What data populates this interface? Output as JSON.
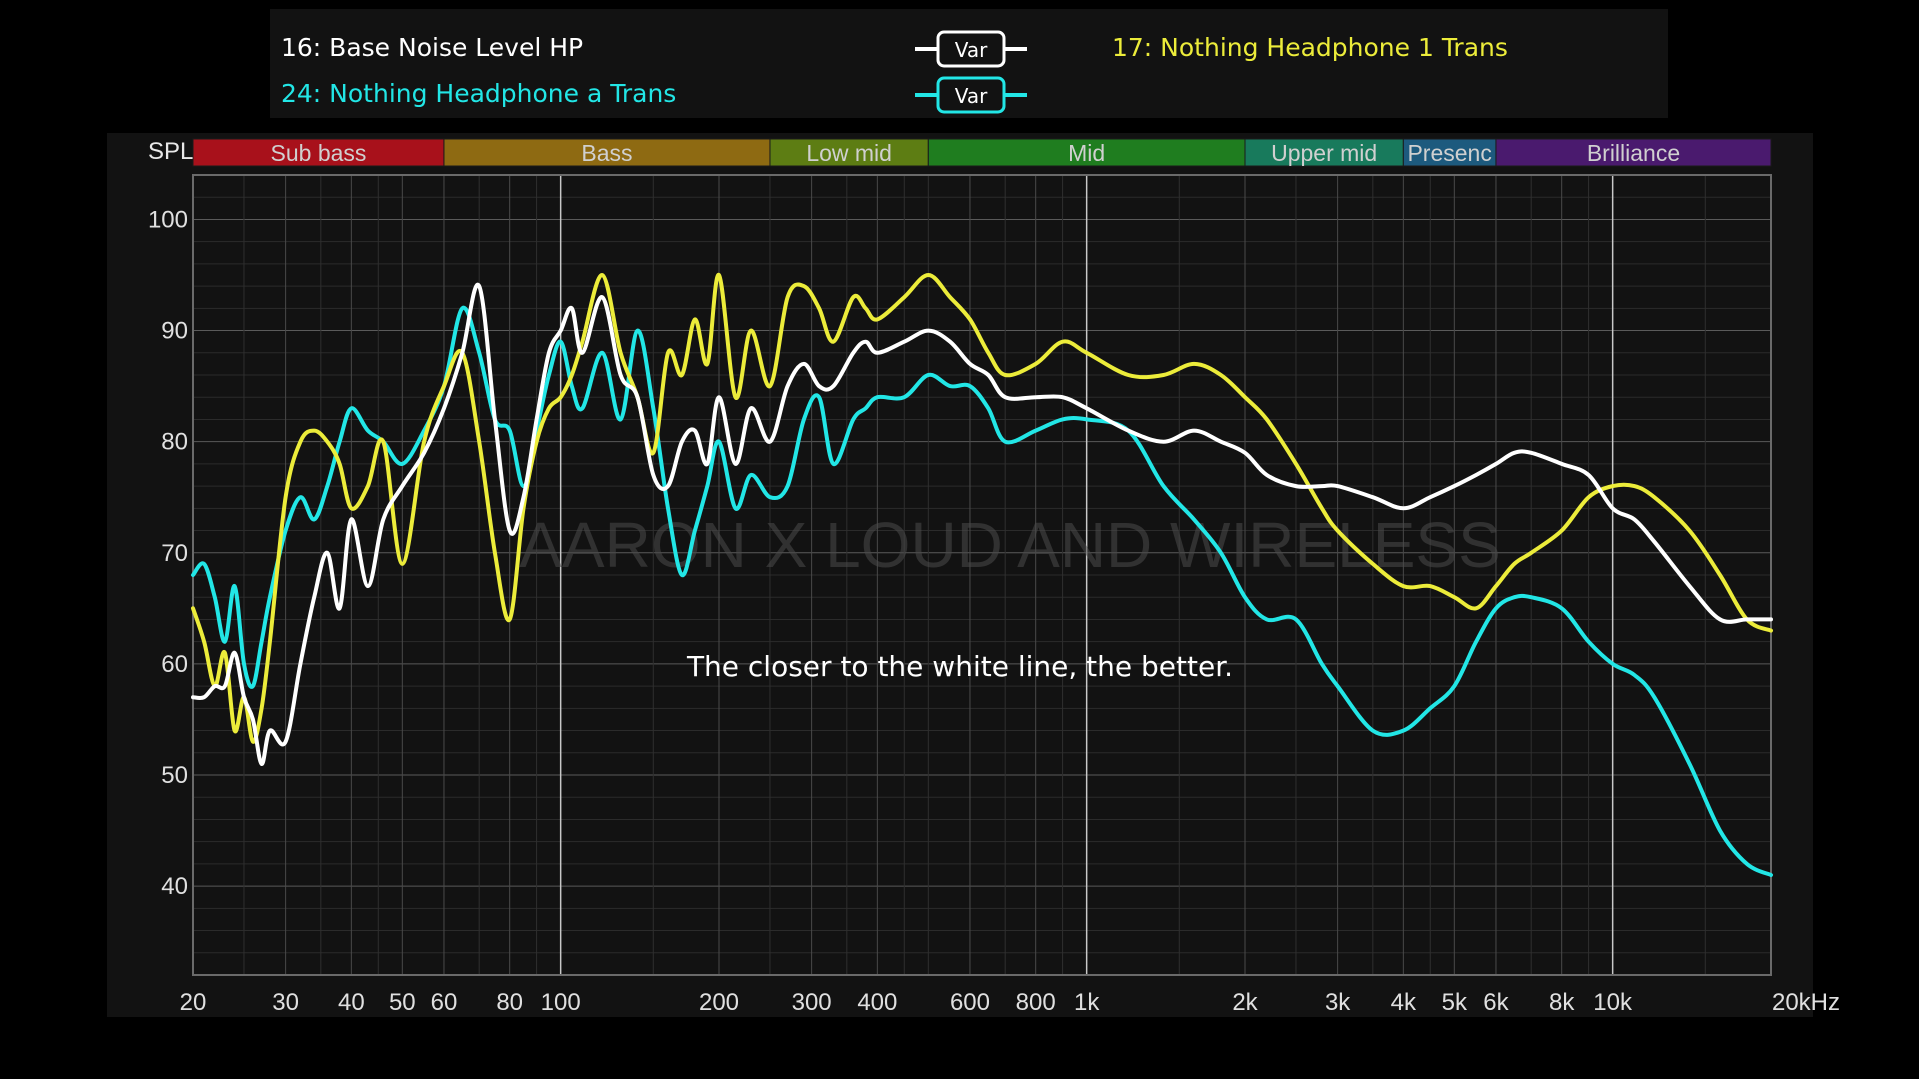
{
  "legend": {
    "entries": [
      {
        "label": "16: Base Noise Level HP",
        "color": "#ffffff",
        "badge": "Var"
      },
      {
        "label": "24: Nothing Headphone a Trans",
        "color": "#22e6e6",
        "badge": "Var"
      },
      {
        "label": "17: Nothing Headphone 1 Trans",
        "color": "#ecec3a"
      }
    ]
  },
  "watermark": "AARON X LOUD AND WIRELESS",
  "note": "The closer to the white line, the better.",
  "chart_data": {
    "type": "line",
    "ylabel": "SPL",
    "x_scale": "log",
    "xlim": [
      20,
      20000
    ],
    "ylim": [
      32,
      104
    ],
    "grid": true,
    "yticks": [
      40,
      50,
      60,
      70,
      80,
      90,
      100
    ],
    "xticks": [
      {
        "value": 20,
        "label": "20"
      },
      {
        "value": 30,
        "label": "30"
      },
      {
        "value": 40,
        "label": "40"
      },
      {
        "value": 50,
        "label": "50"
      },
      {
        "value": 60,
        "label": "60"
      },
      {
        "value": 80,
        "label": "80"
      },
      {
        "value": 100,
        "label": "100"
      },
      {
        "value": 200,
        "label": "200"
      },
      {
        "value": 300,
        "label": "300"
      },
      {
        "value": 400,
        "label": "400"
      },
      {
        "value": 600,
        "label": "600"
      },
      {
        "value": 800,
        "label": "800"
      },
      {
        "value": 1000,
        "label": "1k"
      },
      {
        "value": 2000,
        "label": "2k"
      },
      {
        "value": 3000,
        "label": "3k"
      },
      {
        "value": 4000,
        "label": "4k"
      },
      {
        "value": 5000,
        "label": "5k"
      },
      {
        "value": 6000,
        "label": "6k"
      },
      {
        "value": 8000,
        "label": "8k"
      },
      {
        "value": 10000,
        "label": "10k"
      },
      {
        "value": 20000,
        "label": "20kHz"
      }
    ],
    "bands": [
      {
        "label": "Sub bass",
        "from": 20,
        "to": 60,
        "color": "#a8111b"
      },
      {
        "label": "Bass",
        "from": 60,
        "to": 250,
        "color": "#8e6a12"
      },
      {
        "label": "Low mid",
        "from": 250,
        "to": 500,
        "color": "#5d7d13"
      },
      {
        "label": "Mid",
        "from": 500,
        "to": 2000,
        "color": "#1f7d1f"
      },
      {
        "label": "Upper mid",
        "from": 2000,
        "to": 4000,
        "color": "#187a5c"
      },
      {
        "label": "Presenc",
        "from": 4000,
        "to": 6000,
        "color": "#1d5a7e"
      },
      {
        "label": "Brilliance",
        "from": 6000,
        "to": 20000,
        "color": "#4a1a6e"
      }
    ],
    "series": [
      {
        "name": "24: Nothing Headphone a Trans",
        "color": "#22e6e6",
        "x": [
          20,
          21,
          22,
          23,
          24,
          25,
          26,
          27,
          28,
          30,
          32,
          34,
          36,
          38,
          40,
          43,
          46,
          50,
          55,
          60,
          65,
          70,
          75,
          80,
          85,
          90,
          95,
          100,
          105,
          110,
          120,
          130,
          140,
          150,
          160,
          170,
          180,
          190,
          200,
          215,
          230,
          250,
          270,
          290,
          310,
          330,
          360,
          380,
          400,
          450,
          500,
          550,
          600,
          650,
          700,
          800,
          900,
          1000,
          1200,
          1400,
          1600,
          1800,
          2000,
          2200,
          2500,
          2800,
          3000,
          3500,
          4000,
          4500,
          5000,
          5500,
          6000,
          6500,
          7000,
          8000,
          9000,
          10000,
          11000,
          12000,
          14000,
          16000,
          18000,
          20000
        ],
        "y": [
          68,
          69,
          66,
          62,
          67,
          60,
          58,
          62,
          66,
          72,
          75,
          73,
          76,
          80,
          83,
          81,
          80,
          78,
          81,
          85,
          92,
          88,
          82,
          81,
          76,
          81,
          86,
          89,
          85,
          83,
          88,
          82,
          90,
          83,
          74,
          68,
          72,
          76,
          80,
          74,
          77,
          75,
          76,
          82,
          84,
          78,
          82,
          83,
          84,
          84,
          86,
          85,
          85,
          83,
          80,
          81,
          82,
          82,
          81,
          76,
          73,
          70,
          66,
          64,
          64,
          60,
          58,
          54,
          54,
          56,
          58,
          62,
          65,
          66,
          66,
          65,
          62,
          60,
          59,
          57,
          51,
          45,
          42,
          41
        ]
      },
      {
        "name": "17: Nothing Headphone 1 Trans",
        "color": "#ecec3a",
        "x": [
          20,
          21,
          22,
          23,
          24,
          25,
          26,
          27,
          28,
          30,
          32,
          34,
          36,
          38,
          40,
          43,
          46,
          50,
          55,
          60,
          65,
          70,
          75,
          80,
          85,
          90,
          95,
          100,
          105,
          110,
          120,
          130,
          140,
          150,
          160,
          170,
          180,
          190,
          200,
          215,
          230,
          250,
          270,
          290,
          310,
          330,
          360,
          380,
          400,
          450,
          500,
          550,
          600,
          650,
          700,
          800,
          900,
          1000,
          1200,
          1400,
          1600,
          1800,
          2000,
          2200,
          2500,
          2800,
          3000,
          3500,
          4000,
          4500,
          5000,
          5500,
          6000,
          6500,
          7000,
          8000,
          9000,
          10000,
          11000,
          12000,
          14000,
          16000,
          18000,
          20000
        ],
        "y": [
          65,
          62,
          58,
          61,
          54,
          57,
          53,
          56,
          62,
          75,
          80,
          81,
          80,
          78,
          74,
          76,
          80,
          69,
          80,
          85,
          88,
          80,
          70,
          64,
          74,
          80,
          83,
          84,
          86,
          89,
          95,
          88,
          84,
          79,
          88,
          86,
          91,
          87,
          95,
          84,
          90,
          85,
          93,
          94,
          92,
          89,
          93,
          92,
          91,
          93,
          95,
          93,
          91,
          88,
          86,
          87,
          89,
          88,
          86,
          86,
          87,
          86,
          84,
          82,
          78,
          74,
          72,
          69,
          67,
          67,
          66,
          65,
          67,
          69,
          70,
          72,
          75,
          76,
          76,
          75,
          72,
          68,
          64,
          63
        ]
      },
      {
        "name": "16: Base Noise Level HP",
        "color": "#ffffff",
        "x": [
          20,
          21,
          22,
          23,
          24,
          25,
          26,
          27,
          28,
          30,
          32,
          34,
          36,
          38,
          40,
          43,
          46,
          50,
          55,
          60,
          65,
          70,
          75,
          80,
          85,
          90,
          95,
          100,
          105,
          110,
          120,
          130,
          140,
          150,
          160,
          170,
          180,
          190,
          200,
          215,
          230,
          250,
          270,
          290,
          310,
          330,
          360,
          380,
          400,
          450,
          500,
          550,
          600,
          650,
          700,
          800,
          900,
          1000,
          1200,
          1400,
          1600,
          1800,
          2000,
          2200,
          2500,
          2800,
          3000,
          3500,
          4000,
          4500,
          5000,
          5500,
          6000,
          6500,
          7000,
          8000,
          9000,
          10000,
          11000,
          12000,
          14000,
          16000,
          18000,
          20000
        ],
        "y": [
          57,
          57,
          58,
          58,
          61,
          57,
          55,
          51,
          54,
          53,
          60,
          66,
          70,
          65,
          73,
          67,
          73,
          76,
          79,
          83,
          88,
          94,
          82,
          72,
          75,
          82,
          88,
          90,
          92,
          88,
          93,
          86,
          84,
          77,
          76,
          80,
          81,
          78,
          84,
          78,
          83,
          80,
          85,
          87,
          85,
          85,
          88,
          89,
          88,
          89,
          90,
          89,
          87,
          86,
          84,
          84,
          84,
          83,
          81,
          80,
          81,
          80,
          79,
          77,
          76,
          76,
          76,
          75,
          74,
          75,
          76,
          77,
          78,
          79,
          79,
          78,
          77,
          74,
          73,
          71,
          67,
          64,
          64,
          64
        ]
      }
    ]
  }
}
